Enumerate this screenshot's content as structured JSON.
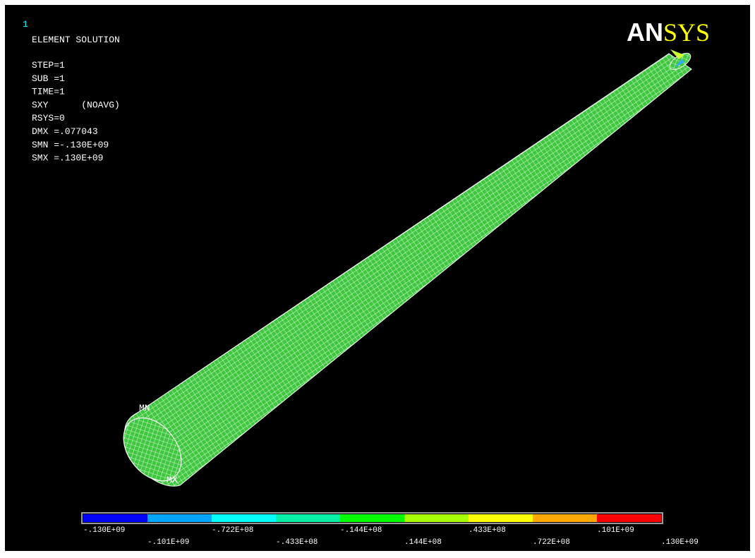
{
  "window_number": "1",
  "header": {
    "title": "ELEMENT SOLUTION",
    "lines": [
      "STEP=1",
      "SUB =1",
      "TIME=1",
      "SXY      (NOAVG)",
      "RSYS=0",
      "DMX =.077043",
      "SMN =-.130E+09",
      "SMX =.130E+09"
    ]
  },
  "logo": {
    "part1": "AN",
    "part2": "SYS"
  },
  "markers": {
    "min": "MN",
    "max": "MX"
  },
  "legend": {
    "colors": [
      "#0000ff",
      "#00a6ff",
      "#00ffff",
      "#00f0a8",
      "#00ff00",
      "#a8ff00",
      "#ffff00",
      "#ffa800",
      "#ff0000"
    ],
    "labels": [
      "-.130E+09",
      "-.101E+09",
      "-.722E+08",
      "-.433E+08",
      "-.144E+08",
      ".144E+08",
      ".433E+08",
      ".722E+08",
      ".101E+09",
      ".130E+09"
    ]
  }
}
